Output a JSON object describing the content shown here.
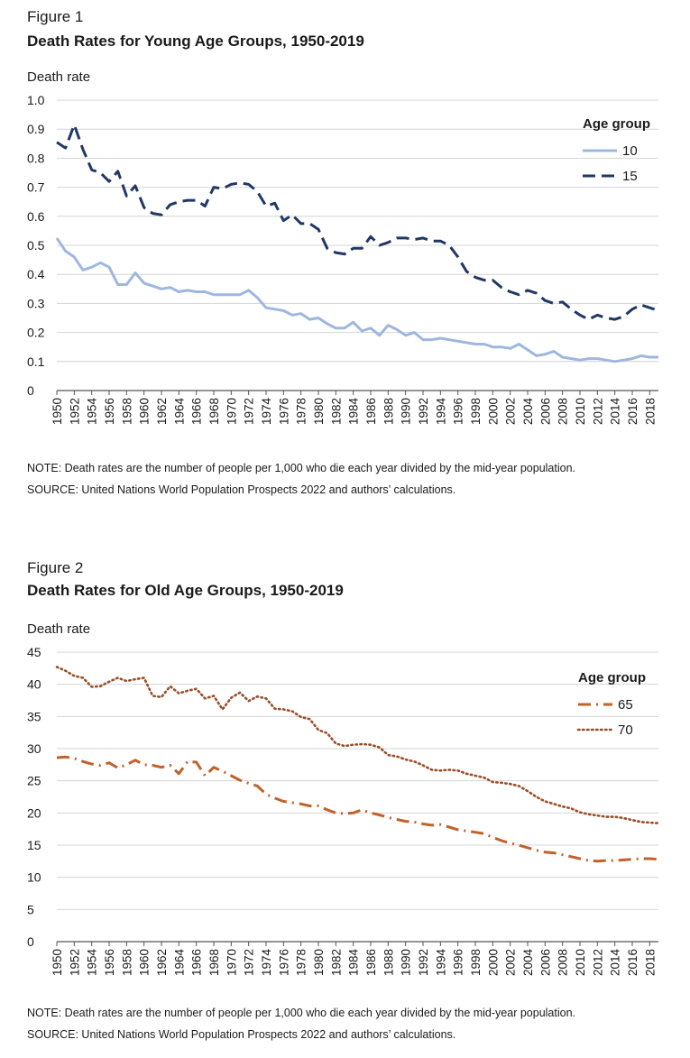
{
  "figures": [
    {
      "label": "Figure 1",
      "title": "Death Rates for Young Age Groups, 1950-2019",
      "note": "NOTE: Death rates are the number of people per 1,000 who die each year divided by the mid-year population.",
      "source": "SOURCE: United Nations World Population Prospects 2022 and authors’ calculations."
    },
    {
      "label": "Figure 2",
      "title": "Death Rates for Old Age Groups, 1950-2019",
      "note": "NOTE: Death rates are the number of people per 1,000 who die each year divided by the mid-year population.",
      "source": "SOURCE: United Nations World Population Prospects 2022 and authors’ calculations."
    }
  ],
  "chart_data": [
    {
      "type": "line",
      "title": "Death Rates for Young Age Groups, 1950-2019",
      "xlabel": "",
      "ylabel": "Death rate",
      "ylim": [
        0,
        1.0
      ],
      "yticks": [
        0,
        0.1,
        0.2,
        0.3,
        0.4,
        0.5,
        0.6,
        0.7,
        0.8,
        0.9,
        1.0
      ],
      "ytick_labels": [
        "0",
        "0.1",
        "0.2",
        "0.3",
        "0.4",
        "0.5",
        "0.6",
        "0.7",
        "0.8",
        "0.9",
        "1.0"
      ],
      "x_start": 1950,
      "x_end": 2019,
      "xticks": [
        1950,
        1952,
        1954,
        1956,
        1958,
        1960,
        1962,
        1964,
        1966,
        1968,
        1970,
        1972,
        1974,
        1976,
        1978,
        1980,
        1982,
        1984,
        1986,
        1988,
        1990,
        1992,
        1994,
        1996,
        1998,
        2000,
        2002,
        2004,
        2006,
        2008,
        2010,
        2012,
        2014,
        2016,
        2018
      ],
      "legend_title": "Age group",
      "legend_position": "top-right",
      "series": [
        {
          "name": "10",
          "color": "#9db7e0",
          "style": "solid",
          "values": [
            0.525,
            0.48,
            0.46,
            0.415,
            0.425,
            0.44,
            0.425,
            0.365,
            0.365,
            0.405,
            0.37,
            0.36,
            0.35,
            0.355,
            0.34,
            0.345,
            0.34,
            0.34,
            0.33,
            0.33,
            0.33,
            0.33,
            0.345,
            0.32,
            0.285,
            0.28,
            0.275,
            0.26,
            0.265,
            0.245,
            0.25,
            0.23,
            0.215,
            0.215,
            0.235,
            0.205,
            0.215,
            0.19,
            0.225,
            0.21,
            0.19,
            0.2,
            0.175,
            0.175,
            0.18,
            0.175,
            0.17,
            0.165,
            0.16,
            0.16,
            0.15,
            0.15,
            0.145,
            0.16,
            0.14,
            0.12,
            0.125,
            0.135,
            0.115,
            0.11,
            0.105,
            0.11,
            0.11,
            0.105,
            0.1,
            0.105,
            0.11,
            0.12,
            0.115,
            0.115
          ]
        },
        {
          "name": "15",
          "color": "#1f3864",
          "style": "dashed",
          "values": [
            0.855,
            0.835,
            0.915,
            0.83,
            0.76,
            0.75,
            0.72,
            0.755,
            0.67,
            0.705,
            0.63,
            0.61,
            0.605,
            0.64,
            0.65,
            0.655,
            0.655,
            0.635,
            0.7,
            0.695,
            0.71,
            0.715,
            0.71,
            0.685,
            0.635,
            0.645,
            0.585,
            0.605,
            0.575,
            0.575,
            0.555,
            0.49,
            0.475,
            0.47,
            0.49,
            0.49,
            0.53,
            0.5,
            0.51,
            0.525,
            0.525,
            0.52,
            0.525,
            0.515,
            0.515,
            0.5,
            0.46,
            0.41,
            0.39,
            0.38,
            0.38,
            0.355,
            0.34,
            0.33,
            0.345,
            0.335,
            0.31,
            0.3,
            0.305,
            0.28,
            0.26,
            0.245,
            0.26,
            0.25,
            0.245,
            0.255,
            0.28,
            0.295,
            0.285,
            0.275
          ]
        }
      ]
    },
    {
      "type": "line",
      "title": "Death Rates for Old Age Groups, 1950-2019",
      "xlabel": "",
      "ylabel": "Death rate",
      "ylim": [
        0,
        45
      ],
      "yticks": [
        0,
        5,
        10,
        15,
        20,
        25,
        30,
        35,
        40,
        45
      ],
      "ytick_labels": [
        "0",
        "5",
        "10",
        "15",
        "20",
        "25",
        "30",
        "35",
        "40",
        "45"
      ],
      "x_start": 1950,
      "x_end": 2019,
      "xticks": [
        1950,
        1952,
        1954,
        1956,
        1958,
        1960,
        1962,
        1964,
        1966,
        1968,
        1970,
        1972,
        1974,
        1976,
        1978,
        1980,
        1982,
        1984,
        1986,
        1988,
        1990,
        1992,
        1994,
        1996,
        1998,
        2000,
        2002,
        2004,
        2006,
        2008,
        2010,
        2012,
        2014,
        2016,
        2018
      ],
      "legend_title": "Age group",
      "legend_position": "top-right",
      "series": [
        {
          "name": "65",
          "color": "#c0622a",
          "style": "dashdot",
          "values": [
            28.6,
            28.7,
            28.5,
            28.0,
            27.6,
            27.4,
            27.8,
            27.0,
            27.5,
            28.2,
            27.5,
            27.4,
            27.1,
            27.4,
            26.1,
            28.0,
            27.9,
            25.8,
            27.1,
            26.5,
            25.8,
            25.1,
            24.6,
            24.2,
            22.9,
            22.3,
            21.8,
            21.6,
            21.4,
            21.1,
            21.1,
            20.5,
            20.0,
            19.9,
            20.0,
            20.5,
            20.0,
            19.7,
            19.3,
            19.0,
            18.7,
            18.6,
            18.3,
            18.1,
            18.2,
            17.8,
            17.4,
            17.2,
            17.0,
            16.8,
            16.2,
            15.7,
            15.3,
            15.0,
            14.6,
            14.2,
            13.9,
            13.8,
            13.5,
            13.2,
            12.9,
            12.6,
            12.5,
            12.6,
            12.6,
            12.7,
            12.8,
            12.9,
            12.9,
            12.8
          ]
        },
        {
          "name": "70",
          "color": "#9a4e28",
          "style": "dotted",
          "values": [
            42.7,
            42.1,
            41.3,
            41.0,
            39.6,
            39.7,
            40.4,
            41.0,
            40.5,
            40.8,
            41.0,
            38.2,
            38.0,
            39.7,
            38.6,
            39.0,
            39.3,
            37.8,
            38.2,
            36.1,
            37.9,
            38.7,
            37.4,
            38.1,
            37.8,
            36.2,
            36.1,
            35.8,
            34.9,
            34.6,
            32.9,
            32.4,
            30.8,
            30.4,
            30.6,
            30.7,
            30.6,
            30.2,
            29.0,
            28.8,
            28.3,
            28.0,
            27.4,
            26.7,
            26.6,
            26.7,
            26.6,
            26.1,
            25.8,
            25.5,
            24.8,
            24.7,
            24.5,
            24.2,
            23.4,
            22.5,
            21.8,
            21.4,
            21.0,
            20.7,
            20.1,
            19.8,
            19.6,
            19.4,
            19.4,
            19.2,
            18.9,
            18.6,
            18.5,
            18.4
          ]
        }
      ]
    }
  ]
}
